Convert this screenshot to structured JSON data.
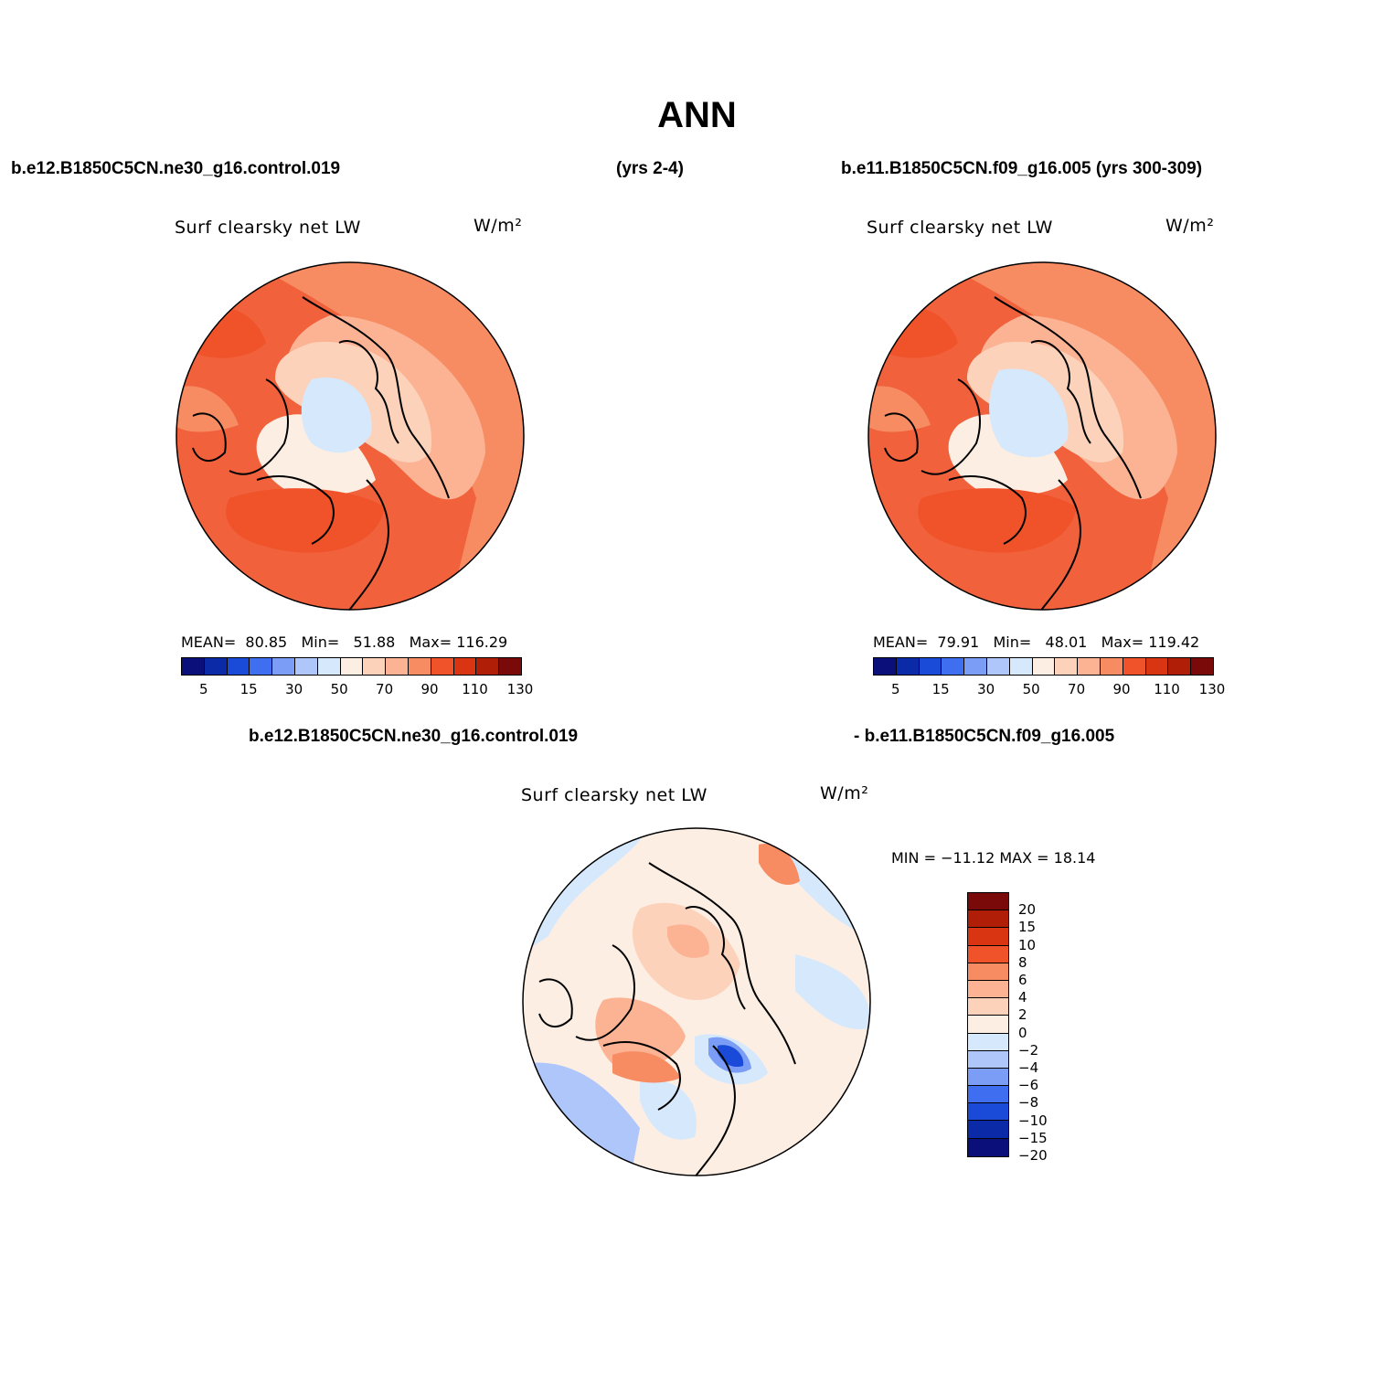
{
  "title": "ANN",
  "header": {
    "left_case": "b.e12.B1850C5CN.ne30_g16.control.019",
    "left_years": "(yrs 2-4)",
    "right_case": "b.e11.B1850C5CN.f09_g16.005 (yrs 300-309)"
  },
  "diff_header": {
    "left": "b.e12.B1850C5CN.ne30_g16.control.019",
    "right": "- b.e11.B1850C5CN.f09_g16.005"
  },
  "panels": [
    {
      "variable": "Surf clearsky net LW",
      "units": "W/m²",
      "stats": {
        "mean_label": "MEAN=",
        "mean": "80.85",
        "min_label": "Min=",
        "min": "51.88",
        "max_label": "Max=",
        "max": "116.29"
      }
    },
    {
      "variable": "Surf clearsky net LW",
      "units": "W/m²",
      "stats": {
        "mean_label": "MEAN=",
        "mean": "79.91",
        "min_label": "Min=",
        "min": "48.01",
        "max_label": "Max=",
        "max": "119.42"
      }
    },
    {
      "variable": "Surf clearsky net LW",
      "units": "W/m²",
      "stats_text": "MIN = −11.12  MAX =   18.14"
    }
  ],
  "abs_colorbar": {
    "colors": [
      "#0a0f7a",
      "#0a2aa8",
      "#1a4bd8",
      "#3f6ff0",
      "#7b9df5",
      "#aec6fa",
      "#d6e8fc",
      "#fdeee3",
      "#fcd2bb",
      "#fbb394",
      "#f78c63",
      "#f0522a",
      "#d93512",
      "#b01e08",
      "#7a0a0a"
    ],
    "labels": [
      "5",
      "15",
      "30",
      "50",
      "70",
      "90",
      "110",
      "130"
    ]
  },
  "diff_colorbar": {
    "colors": [
      "#7a0a0a",
      "#b01e08",
      "#d93512",
      "#f0522a",
      "#f78c63",
      "#fbb394",
      "#fcd2bb",
      "#fdeee3",
      "#d6e8fc",
      "#aec6fa",
      "#7b9df5",
      "#3f6ff0",
      "#1a4bd8",
      "#0a2aa8",
      "#0a0f7a"
    ],
    "labels": [
      "20",
      "15",
      "10",
      "8",
      "6",
      "4",
      "2",
      "0",
      "−2",
      "−4",
      "−6",
      "−8",
      "−10",
      "−15",
      "−20"
    ]
  }
}
